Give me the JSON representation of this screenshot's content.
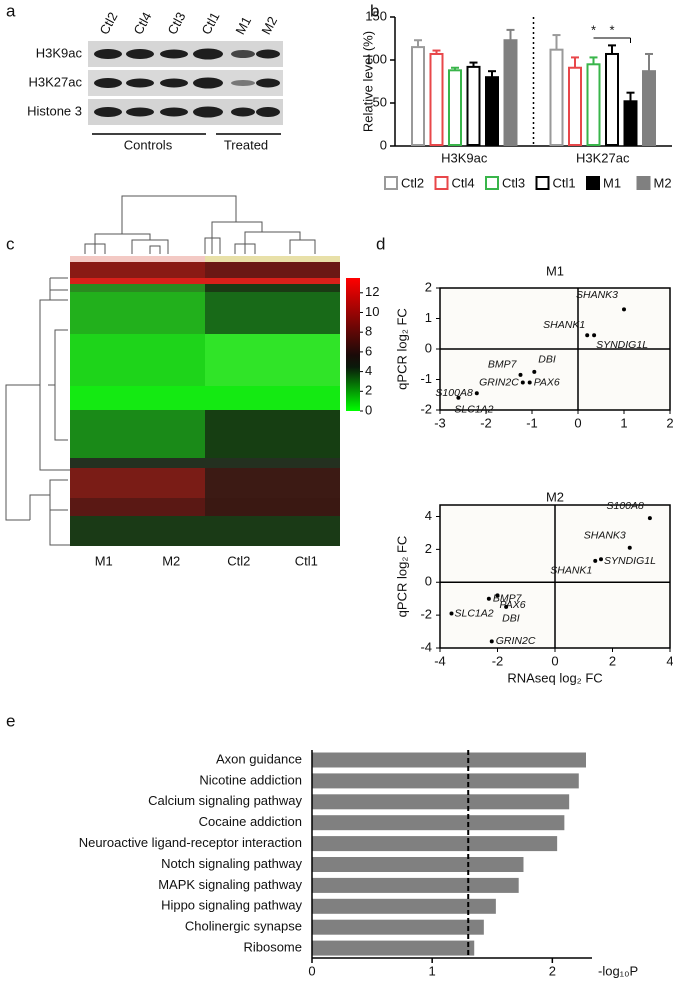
{
  "panel_labels": [
    "a",
    "b",
    "c",
    "d",
    "e"
  ],
  "blot": {
    "columns": [
      "Ctl2",
      "Ctl4",
      "Ctl3",
      "Ctl1",
      "M1",
      "M2"
    ],
    "rows": [
      "H3K9ac",
      "H3K27ac",
      "Histone 3"
    ],
    "groups": [
      "Controls",
      "Treated"
    ]
  },
  "chart_data": [
    {
      "type": "bar",
      "categories": [
        "H3K9ac",
        "H3K27ac"
      ],
      "ylabel": "Relative level (%)",
      "ylim": [
        0,
        150
      ],
      "yticks": [
        0,
        50,
        100,
        150
      ],
      "divider": true,
      "annotations": [
        "*",
        "*"
      ],
      "series": [
        {
          "name": "Ctl2",
          "color": "#9a9a9a",
          "style": "outline",
          "values": [
            115,
            112
          ],
          "errors": [
            8,
            17
          ]
        },
        {
          "name": "Ctl4",
          "color": "#e8474a",
          "style": "outline",
          "values": [
            107,
            91
          ],
          "errors": [
            4,
            12
          ]
        },
        {
          "name": "Ctl3",
          "color": "#39b54a",
          "style": "outline",
          "values": [
            88,
            95
          ],
          "errors": [
            3,
            8
          ]
        },
        {
          "name": "Ctl1",
          "color": "#000000",
          "style": "outline",
          "values": [
            92,
            107
          ],
          "errors": [
            5,
            10
          ]
        },
        {
          "name": "M1",
          "color": "#000000",
          "style": "solid",
          "values": [
            80,
            52
          ],
          "errors": [
            7,
            10
          ]
        },
        {
          "name": "M2",
          "color": "#808080",
          "style": "solid",
          "values": [
            123,
            87
          ],
          "errors": [
            12,
            20
          ]
        }
      ]
    },
    {
      "type": "heatmap",
      "categories": [
        "M1",
        "M2",
        "Ctl2",
        "Ctl1"
      ],
      "zlim": [
        0,
        13.5
      ],
      "zticks": [
        0,
        2,
        4,
        6,
        8,
        10,
        12
      ]
    },
    {
      "type": "scatter",
      "title": "M1",
      "ylabel": "qPCR log₂ FC",
      "xlim": [
        -3,
        2
      ],
      "xticks": [
        -3,
        -2,
        -1,
        0,
        1,
        2
      ],
      "ylim": [
        -2,
        2
      ],
      "yticks": [
        -2,
        -1,
        0,
        1,
        2
      ],
      "points": [
        {
          "label": "SHANK3",
          "x": 1.0,
          "y": 1.3
        },
        {
          "label": "SHANK1",
          "x": 0.2,
          "y": 0.45
        },
        {
          "label": "SYNDIG1L",
          "x": 0.35,
          "y": 0.45
        },
        {
          "label": "BMP7",
          "x": -1.25,
          "y": -0.85
        },
        {
          "label": "DBI",
          "x": -0.95,
          "y": -0.75
        },
        {
          "label": "GRIN2C",
          "x": -1.2,
          "y": -1.1
        },
        {
          "label": "PAX6",
          "x": -1.05,
          "y": -1.1
        },
        {
          "label": "S100A8",
          "x": -2.2,
          "y": -1.45
        },
        {
          "label": "SLC1A2",
          "x": -2.6,
          "y": -1.6
        }
      ]
    },
    {
      "type": "scatter",
      "title": "M2",
      "ylabel": "qPCR log₂ FC",
      "xlabel": "RNAseq log₂ FC",
      "xlim": [
        -4,
        4
      ],
      "xticks": [
        -4,
        -2,
        0,
        2,
        4
      ],
      "ylim": [
        -4,
        4.7
      ],
      "yticks": [
        -4,
        -2,
        0,
        2,
        4
      ],
      "points": [
        {
          "label": "S100A8",
          "x": 3.3,
          "y": 3.9
        },
        {
          "label": "SHANK3",
          "x": 2.6,
          "y": 2.1
        },
        {
          "label": "SYNDIG1L",
          "x": 1.6,
          "y": 1.4
        },
        {
          "label": "SHANK1",
          "x": 1.4,
          "y": 1.3
        },
        {
          "label": "BMP7",
          "x": -2.3,
          "y": -1.0
        },
        {
          "label": "PAX6",
          "x": -2.0,
          "y": -0.8
        },
        {
          "label": "DBI",
          "x": -1.7,
          "y": -1.5
        },
        {
          "label": "SLC1A2",
          "x": -3.6,
          "y": -1.9
        },
        {
          "label": "GRIN2C",
          "x": -2.2,
          "y": -3.6
        }
      ]
    },
    {
      "type": "barh",
      "xlabel": "-log₁₀P",
      "color": "#808080",
      "threshold": 1.3,
      "xlim": [
        0,
        2.33
      ],
      "xticks": [
        0,
        1,
        2
      ],
      "categories": [
        "Axon guidance",
        "Nicotine addiction",
        "Calcium signaling pathway",
        "Cocaine addiction",
        "Neuroactive ligand-receptor interaction",
        "Notch signaling pathway",
        "MAPK signaling pathway",
        "Hippo signaling pathway",
        "Cholinergic synapse",
        "Ribosome"
      ],
      "values": [
        2.28,
        2.22,
        2.14,
        2.1,
        2.04,
        1.76,
        1.72,
        1.53,
        1.43,
        1.35
      ]
    }
  ]
}
